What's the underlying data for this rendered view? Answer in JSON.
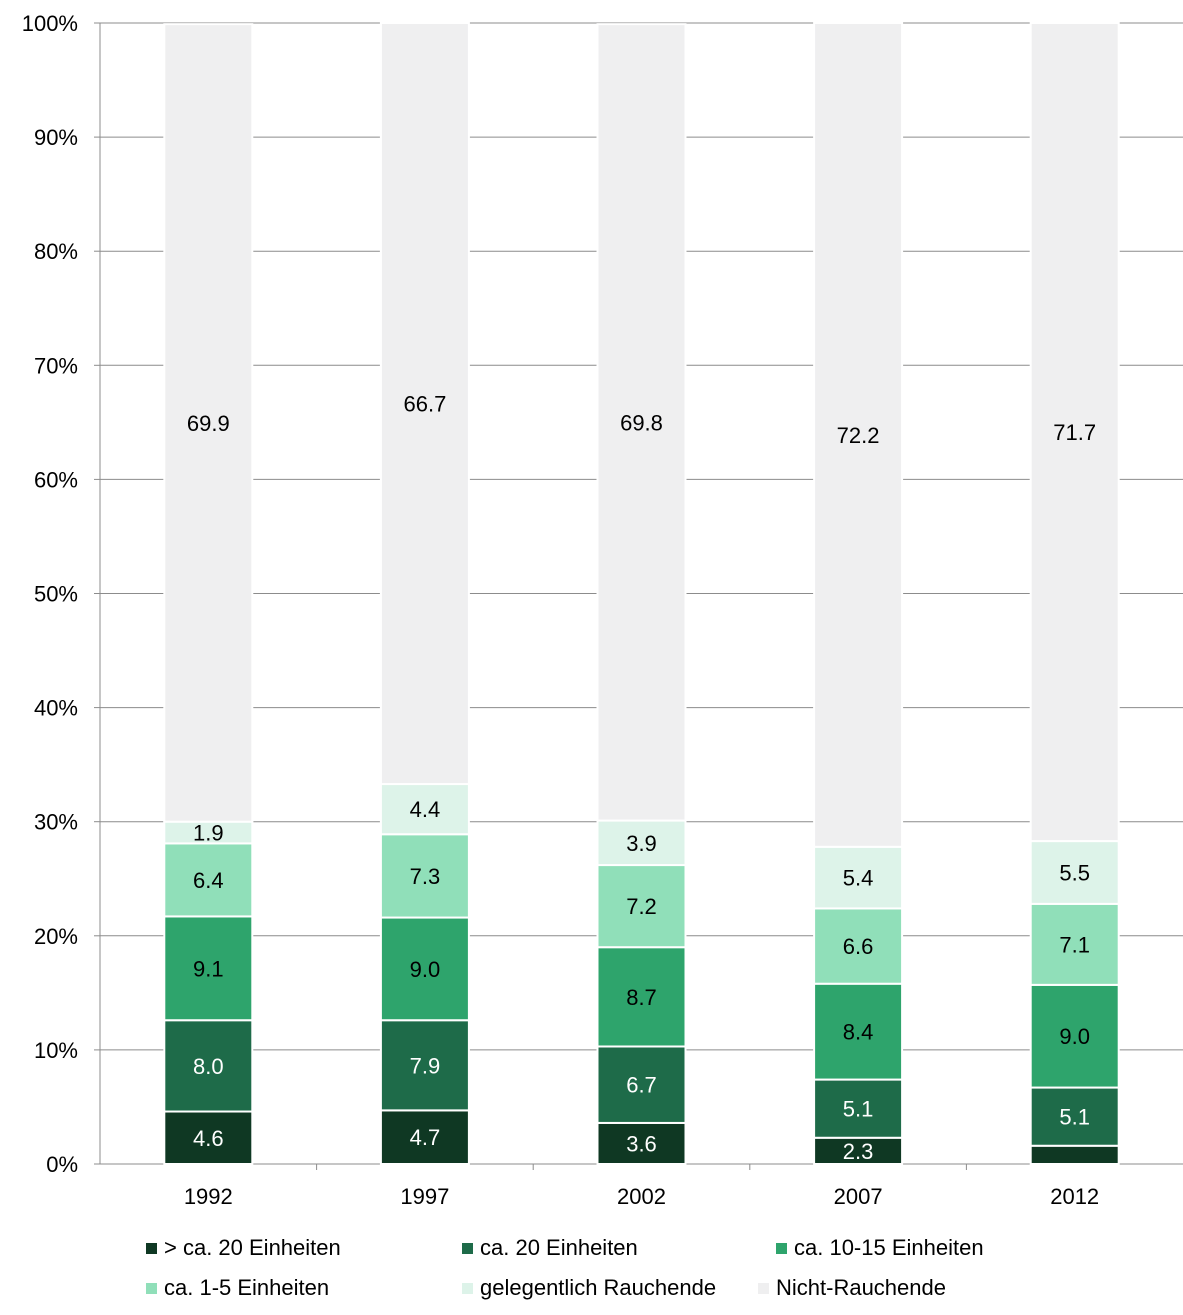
{
  "chart_data": {
    "type": "bar",
    "stacked": "percent",
    "categories": [
      "1992",
      "1997",
      "2002",
      "2007",
      "2012"
    ],
    "series": [
      {
        "name": "> ca. 20 Einheiten",
        "color": "#0f3823",
        "values": [
          4.6,
          4.7,
          3.6,
          2.3,
          1.6
        ],
        "labels": [
          "4.6",
          "4.7",
          "3.6",
          "2.3",
          ""
        ]
      },
      {
        "name": "ca. 20 Einheiten",
        "color": "#1e6b49",
        "values": [
          8.0,
          7.9,
          6.7,
          5.1,
          5.1
        ],
        "labels": [
          "8.0",
          "7.9",
          "6.7",
          "5.1",
          "5.1"
        ]
      },
      {
        "name": "ca. 10-15 Einheiten",
        "color": "#2ea46c",
        "values": [
          9.1,
          9.0,
          8.7,
          8.4,
          9.0
        ],
        "labels": [
          "9.1",
          "9.0",
          "8.7",
          "8.4",
          "9.0"
        ]
      },
      {
        "name": "ca. 1-5 Einheiten",
        "color": "#90dfb9",
        "values": [
          6.4,
          7.3,
          7.2,
          6.6,
          7.1
        ],
        "labels": [
          "6.4",
          "7.3",
          "7.2",
          "6.6",
          "7.1"
        ]
      },
      {
        "name": "gelegentlich Rauchende",
        "color": "#ddf3e9",
        "values": [
          1.9,
          4.4,
          3.9,
          5.4,
          5.5
        ],
        "labels": [
          "1.9",
          "4.4",
          "3.9",
          "5.4",
          "5.5"
        ]
      },
      {
        "name": "Nicht-Rauchende",
        "color": "#efeff0",
        "values": [
          69.9,
          66.7,
          69.8,
          72.2,
          71.7
        ],
        "labels": [
          "69.9",
          "66.7",
          "69.8",
          "72.2",
          "71.7"
        ]
      }
    ],
    "label_colors": [
      "#ffffff",
      "#ffffff",
      "#000000",
      "#000000",
      "#000000",
      "#000000"
    ],
    "y_ticks": [
      "0%",
      "10%",
      "20%",
      "30%",
      "40%",
      "50%",
      "60%",
      "70%",
      "80%",
      "90%",
      "100%"
    ],
    "ylim": [
      0,
      100
    ],
    "grid": true,
    "legend_position": "bottom"
  }
}
